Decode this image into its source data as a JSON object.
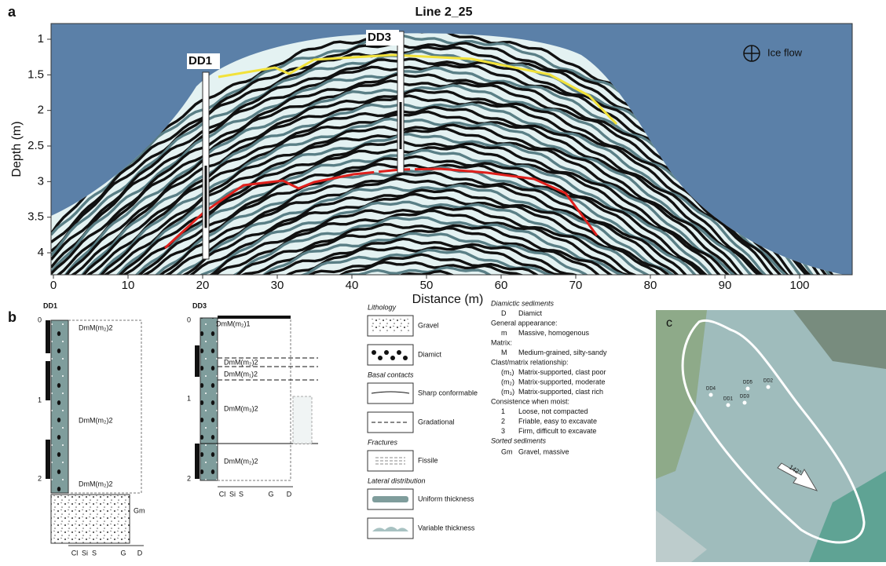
{
  "panel_a": {
    "label": "a",
    "title": "Line 2_25",
    "x_label": "Distance (m)",
    "y_label": "Depth (m)",
    "xticks": [
      0,
      10,
      20,
      30,
      40,
      50,
      60,
      70,
      80,
      90,
      100
    ],
    "yticks": [
      1,
      1.5,
      2,
      2.5,
      3,
      3.5,
      4
    ],
    "boreholes": [
      "DD1",
      "DD3"
    ],
    "legend": "Ice flow"
  },
  "panel_b": {
    "label": "b",
    "logs": [
      {
        "name": "DD1",
        "depth_ticks": [
          0,
          1,
          2
        ],
        "units": [
          "DmM(m₂)2",
          "DmM(m₂)2",
          "DmM(m₂)2",
          "Gm"
        ],
        "axis_labels": [
          "Cl",
          "Si",
          "S",
          "G",
          "D"
        ]
      },
      {
        "name": "DD3",
        "depth_ticks": [
          0,
          1,
          2
        ],
        "units": [
          "DmM(m₂)1",
          "DmM(m₂)2",
          "DmM(m₁)2",
          "DmM(m₃)2",
          "DmM(m₂)2"
        ],
        "axis_labels": [
          "Cl",
          "Si",
          "S",
          "G",
          "D"
        ]
      }
    ],
    "legend": [
      {
        "heading": "Lithology",
        "items": [
          "Gravel",
          "Diamict"
        ]
      },
      {
        "heading": "Basal contacts",
        "items": [
          "Sharp conformable",
          "Gradational"
        ]
      },
      {
        "heading": "Fractures",
        "items": [
          "Fissile"
        ]
      },
      {
        "heading": "Lateral distribution",
        "items": [
          "Uniform thickness",
          "Variable thickness"
        ]
      }
    ],
    "codes": [
      {
        "heading": "Diamictic sediments"
      },
      {
        "code": "D",
        "text": "Diamict"
      },
      {
        "text": "General appearance:"
      },
      {
        "code": "m",
        "text": "Massive, homogenous"
      },
      {
        "text": "Matrix:"
      },
      {
        "code": "M",
        "text": "Medium-grained, silty-sandy"
      },
      {
        "text": "Clast/matrix relationship:"
      },
      {
        "code": "(m₁)",
        "text": "Matrix-supported, clast poor"
      },
      {
        "code": "(m₂)",
        "text": "Matrix-supported, moderate"
      },
      {
        "code": "(m₃)",
        "text": "Matrix-supported, clast rich"
      },
      {
        "text": "Consistence when moist:"
      },
      {
        "code": "1",
        "text": "Loose, not compacted"
      },
      {
        "code": "2",
        "text": "Friable, easy to excavate"
      },
      {
        "code": "3",
        "text": "Firm, difficult to excavate"
      },
      {
        "heading": "Sorted sediments"
      },
      {
        "code": "Gm",
        "text": "Gravel, massive"
      }
    ]
  },
  "panel_c": {
    "label": "c",
    "sites": [
      "DD4",
      "DD5",
      "DD2",
      "DD1",
      "DD3"
    ],
    "arrow": "142°"
  }
}
